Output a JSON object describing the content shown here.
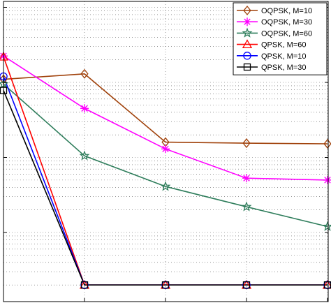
{
  "chart_data": {
    "type": "line",
    "title": "",
    "xlabel": "",
    "ylabel": "",
    "x": [
      0,
      1,
      2,
      3,
      4
    ],
    "yscale": "log",
    "ylim": [
      1.2e-06,
      0.012
    ],
    "grid": "major-and-minor",
    "legend_position": "top-right",
    "series": [
      {
        "name": "OQPSK, M=10",
        "color": "#A0410A",
        "marker": "diamond",
        "values": [
          0.0011,
          0.0013,
          0.00016,
          0.000155,
          0.000152
        ]
      },
      {
        "name": "OQPSK, M=30",
        "color": "#FF00FF",
        "marker": "asterisk",
        "values": [
          0.00225,
          0.00045,
          0.00013,
          5.3e-05,
          5e-05
        ]
      },
      {
        "name": "OQPSK, M=60",
        "color": "#2E7D5B",
        "marker": "star",
        "values": [
          0.00095,
          0.000105,
          4.1e-05,
          2.2e-05,
          1.2e-05
        ]
      },
      {
        "name": "QPSK, M=60",
        "color": "#FF0000",
        "marker": "triangle",
        "values": [
          0.0022,
          2e-06,
          2e-06,
          2e-06,
          2e-06
        ]
      },
      {
        "name": "QPSK, M=10",
        "color": "#0000FF",
        "marker": "circle",
        "values": [
          0.0012,
          2e-06,
          2e-06,
          2e-06,
          2e-06
        ]
      },
      {
        "name": "QPSK, M=30",
        "color": "#000000",
        "marker": "square",
        "values": [
          0.00078,
          2e-06,
          2e-06,
          2e-06,
          2e-06
        ]
      }
    ]
  }
}
